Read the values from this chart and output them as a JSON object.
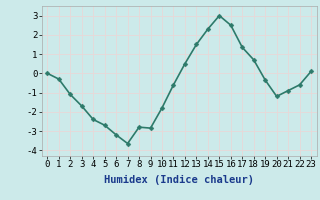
{
  "x": [
    0,
    1,
    2,
    3,
    4,
    5,
    6,
    7,
    8,
    9,
    10,
    11,
    12,
    13,
    14,
    15,
    16,
    17,
    18,
    19,
    20,
    21,
    22,
    23
  ],
  "y": [
    0.0,
    -0.3,
    -1.1,
    -1.7,
    -2.4,
    -2.7,
    -3.2,
    -3.65,
    -2.8,
    -2.85,
    -1.8,
    -0.6,
    0.5,
    1.5,
    2.3,
    3.0,
    2.5,
    1.35,
    0.7,
    -0.35,
    -1.2,
    -0.9,
    -0.6,
    0.1
  ],
  "line_color": "#2d7a6a",
  "marker_color": "#2d7a6a",
  "bg_color": "#cceaea",
  "grid_color": "#e8d8d8",
  "xlabel": "Humidex (Indice chaleur)",
  "xlim": [
    -0.5,
    23.5
  ],
  "ylim": [
    -4.3,
    3.5
  ],
  "yticks": [
    -4,
    -3,
    -2,
    -1,
    0,
    1,
    2,
    3
  ],
  "xticks": [
    0,
    1,
    2,
    3,
    4,
    5,
    6,
    7,
    8,
    9,
    10,
    11,
    12,
    13,
    14,
    15,
    16,
    17,
    18,
    19,
    20,
    21,
    22,
    23
  ],
  "xlabel_fontsize": 7.5,
  "tick_fontsize": 6.5,
  "linewidth": 1.2,
  "markersize": 2.5
}
